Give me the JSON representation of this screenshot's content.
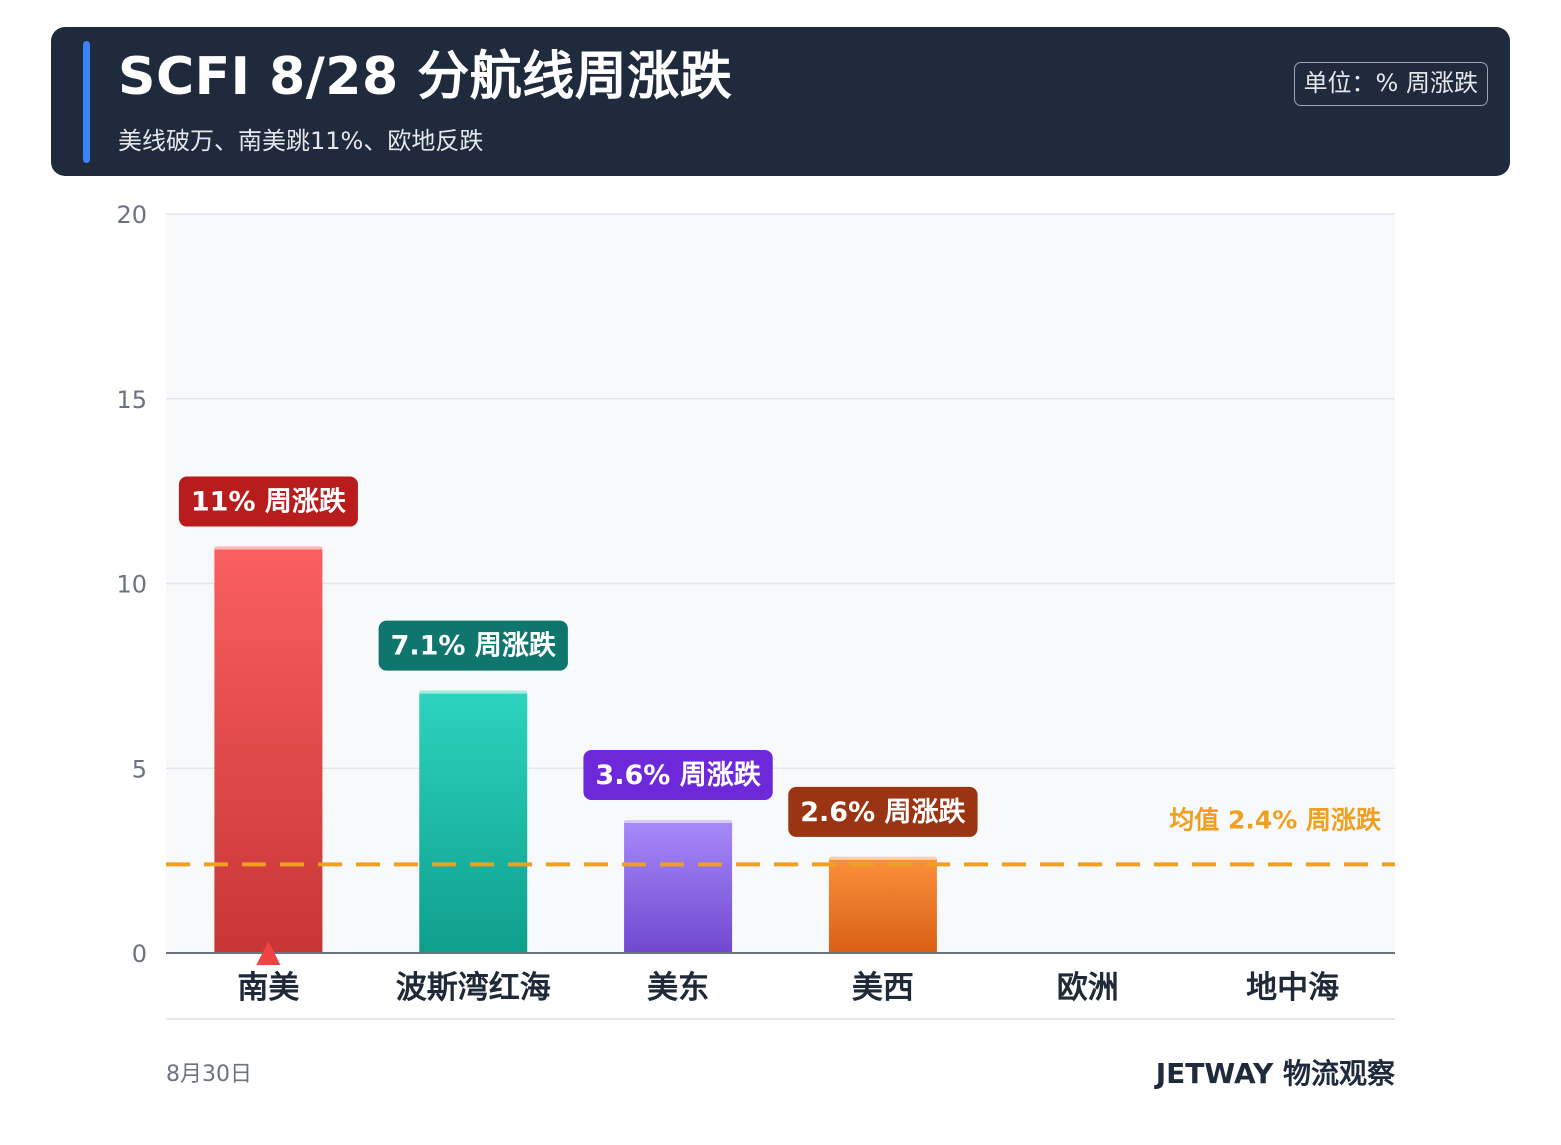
{
  "header": {
    "title": "SCFI 8/28 分航线周涨跌",
    "subtitle": "美线破万、南美跳11%、欧地反跌",
    "unit_badge": "单位：% 周涨跌"
  },
  "chart_data": {
    "type": "bar",
    "categories": [
      "南美",
      "波斯湾红海",
      "美东",
      "美西",
      "欧洲",
      "地中海"
    ],
    "values": [
      11,
      7.1,
      3.6,
      2.6,
      0,
      0
    ],
    "data_labels": [
      "11% 周涨跌",
      "7.1% 周涨跌",
      "3.6% 周涨跌",
      "2.6% 周涨跌",
      "",
      ""
    ],
    "label_colors": [
      "#b91c1c",
      "#0f766e",
      "#6d28d9",
      "#9a3412",
      "",
      ""
    ],
    "bar_colors": [
      [
        "#fb5f5f",
        "#c73535"
      ],
      [
        "#2dd4bf",
        "#0e9f8c"
      ],
      [
        "#a78bfa",
        "#7048d0"
      ],
      [
        "#fb923c",
        "#d95f15"
      ],
      [
        "#cccccc",
        "#cccccc"
      ],
      [
        "#cccccc",
        "#cccccc"
      ]
    ],
    "y_ticks": [
      "0",
      "5",
      "10",
      "15",
      "20"
    ],
    "ylim": [
      0,
      20
    ],
    "grid": true,
    "average": {
      "value": 2.4,
      "label": "均值 2.4% 周涨跌",
      "color": "#f0a020"
    },
    "highlight_marker": {
      "category": "南美",
      "shape": "triangle-up",
      "color": "#ef4444"
    }
  },
  "footer": {
    "date": "8月30日",
    "brand": "JETWAY 物流观察"
  }
}
